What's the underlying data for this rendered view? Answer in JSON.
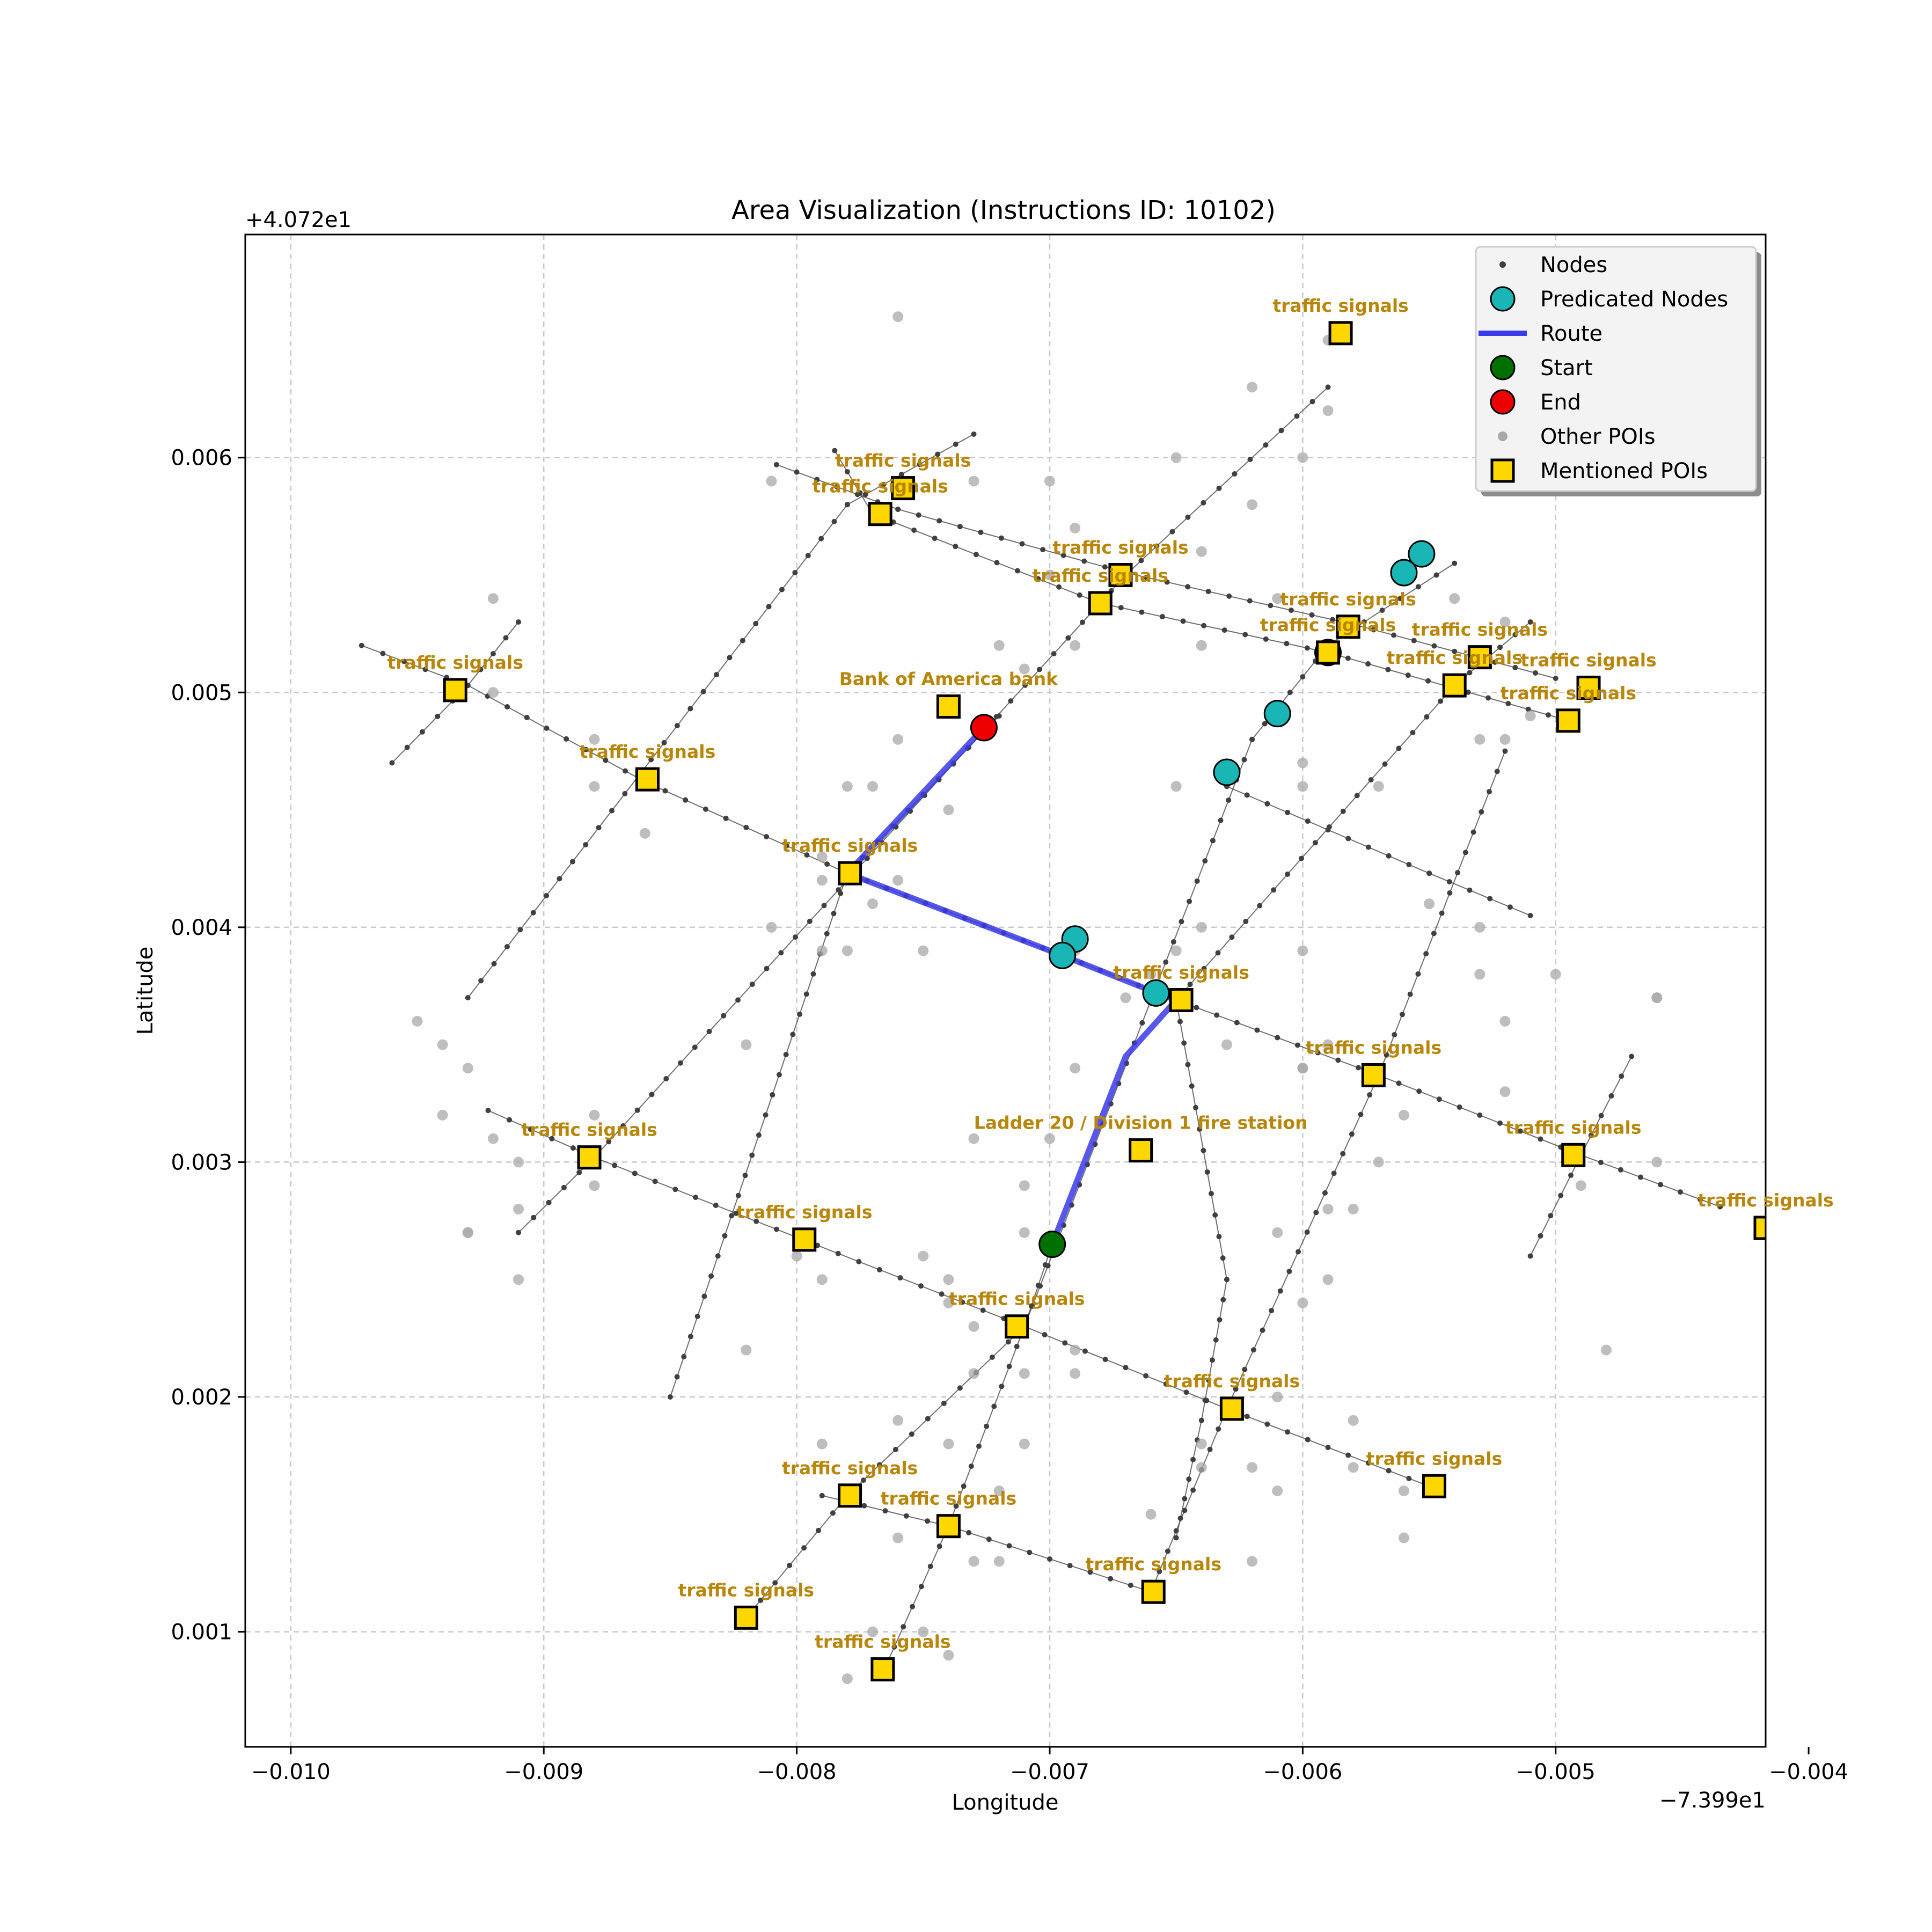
{
  "chart_data": {
    "type": "scatter",
    "title": "Area Visualization (Instructions ID: 10102)",
    "xlabel": "Longitude",
    "ylabel": "Latitude",
    "x_offset_label": "−7.399e1",
    "y_offset_label": "+4.072e1",
    "xlim": [
      -0.01018,
      -0.00417
    ],
    "ylim": [
      0.00051,
      0.00695
    ],
    "x_ticks": [
      -0.01,
      -0.009,
      -0.008,
      -0.007,
      -0.006,
      -0.005,
      -0.004
    ],
    "x_tick_labels": [
      "−0.010",
      "−0.009",
      "−0.008",
      "−0.007",
      "−0.006",
      "−0.005",
      "−0.004"
    ],
    "y_ticks": [
      0.001,
      0.002,
      0.003,
      0.004,
      0.005,
      0.006
    ],
    "y_tick_labels": [
      "0.001",
      "0.002",
      "0.003",
      "0.004",
      "0.005",
      "0.006"
    ],
    "grid": true,
    "legend_position": "top-right",
    "legend": [
      {
        "label": "Nodes",
        "marker": "dot"
      },
      {
        "label": "Predicated Nodes",
        "marker": "cyan-circle"
      },
      {
        "label": "Route",
        "marker": "line"
      },
      {
        "label": "Start",
        "marker": "green-circle"
      },
      {
        "label": "End",
        "marker": "red-circle"
      },
      {
        "label": "Other POIs",
        "marker": "gray-dot"
      },
      {
        "label": "Mentioned POIs",
        "marker": "yellow-square"
      }
    ],
    "colors": {
      "node": "#404040",
      "predicated": "#1ab5b5",
      "route": "#3a3ae8",
      "start": "#007000",
      "end": "#ee0000",
      "other_poi": "#a8a8a8",
      "mentioned_poi": "#ffd700",
      "poi_label": "#b8860b"
    },
    "streets": [
      [
        [
          -0.00972,
          0.0052
        ],
        [
          -0.0093,
          0.00503
        ],
        [
          -0.0086,
          0.00462
        ],
        [
          -0.0078,
          0.00423
        ],
        [
          -0.00695,
          0.00388
        ],
        [
          -0.0065,
          0.00369
        ],
        [
          -0.0057,
          0.00337
        ],
        [
          -0.0049,
          0.00303
        ],
        [
          -0.00435,
          0.00281
        ]
      ],
      [
        [
          -0.00922,
          0.00322
        ],
        [
          -0.0088,
          0.00302
        ],
        [
          -0.008,
          0.00268
        ],
        [
          -0.0071,
          0.0023
        ],
        [
          -0.0063,
          0.00195
        ],
        [
          -0.0055,
          0.00162
        ]
      ],
      [
        [
          -0.00808,
          0.00597
        ],
        [
          -0.0076,
          0.00578
        ],
        [
          -0.0067,
          0.00551
        ],
        [
          -0.0058,
          0.00529
        ],
        [
          -0.005,
          0.00506
        ]
      ],
      [
        [
          -0.00785,
          0.00603
        ],
        [
          -0.0077,
          0.00576
        ],
        [
          -0.0068,
          0.00538
        ],
        [
          -0.0059,
          0.00517
        ],
        [
          -0.00495,
          0.00488
        ]
      ],
      [
        [
          -0.0079,
          0.00158
        ],
        [
          -0.0074,
          0.00145
        ],
        [
          -0.0066,
          0.00117
        ]
      ],
      [
        [
          -0.0063,
          0.0046
        ],
        [
          -0.0055,
          0.00423
        ],
        [
          -0.0051,
          0.00405
        ]
      ],
      [
        [
          -0.0096,
          0.0047
        ],
        [
          -0.0093,
          0.00503
        ],
        [
          -0.0091,
          0.0053
        ]
      ],
      [
        [
          -0.0093,
          0.0037
        ],
        [
          -0.0078,
          0.0058
        ],
        [
          -0.0073,
          0.0061
        ]
      ],
      [
        [
          -0.0091,
          0.0027
        ],
        [
          -0.0088,
          0.00302
        ],
        [
          -0.0067,
          0.0055
        ],
        [
          -0.0059,
          0.0063
        ]
      ],
      [
        [
          -0.0085,
          0.002
        ],
        [
          -0.0078,
          0.00423
        ],
        [
          -0.0072,
          0.0049
        ]
      ],
      [
        [
          -0.0082,
          0.00106
        ],
        [
          -0.0078,
          0.00158
        ],
        [
          -0.0071,
          0.0023
        ],
        [
          -0.0062,
          0.0048
        ],
        [
          -0.0059,
          0.0052
        ],
        [
          -0.0054,
          0.00555
        ]
      ],
      [
        [
          -0.00765,
          0.00085
        ],
        [
          -0.0074,
          0.00145
        ],
        [
          -0.0071,
          0.0023
        ],
        [
          -0.00699,
          0.00265
        ]
      ],
      [
        [
          -0.0066,
          0.00117
        ],
        [
          -0.0063,
          0.00195
        ],
        [
          -0.0057,
          0.00337
        ],
        [
          -0.0052,
          0.00475
        ]
      ],
      [
        [
          -0.0065,
          0.0014
        ],
        [
          -0.0064,
          0.0019
        ],
        [
          -0.0063,
          0.0025
        ],
        [
          -0.0065,
          0.00369
        ],
        [
          -0.0054,
          0.00503
        ],
        [
          -0.0051,
          0.0053
        ]
      ],
      [
        [
          -0.0051,
          0.0026
        ],
        [
          -0.0049,
          0.00303
        ],
        [
          -0.0047,
          0.00345
        ]
      ]
    ],
    "route": [
      [
        -0.00699,
        0.00265
      ],
      [
        -0.0067,
        0.00345
      ],
      [
        -0.0065,
        0.00369
      ],
      [
        -0.0066,
        0.00373
      ],
      [
        -0.00695,
        0.00388
      ],
      [
        -0.0078,
        0.00423
      ],
      [
        -0.00726,
        0.00485
      ]
    ],
    "start": [
      -0.00699,
      0.00265
    ],
    "end": [
      -0.00726,
      0.00485
    ],
    "predicated_nodes": [
      [
        -0.00553,
        0.00559
      ],
      [
        -0.0056,
        0.00551
      ],
      [
        -0.0059,
        0.00517
      ],
      [
        -0.0061,
        0.00491
      ],
      [
        -0.0063,
        0.00466
      ],
      [
        -0.0069,
        0.00395
      ],
      [
        -0.00695,
        0.00388
      ],
      [
        -0.00658,
        0.00372
      ]
    ],
    "other_pois": [
      [
        -0.0076,
        0.0066
      ],
      [
        -0.0059,
        0.0065
      ],
      [
        -0.0059,
        0.0062
      ],
      [
        -0.006,
        0.006
      ],
      [
        -0.0062,
        0.0063
      ],
      [
        -0.0081,
        0.0059
      ],
      [
        -0.0073,
        0.0059
      ],
      [
        -0.007,
        0.0059
      ],
      [
        -0.0065,
        0.006
      ],
      [
        -0.0062,
        0.0058
      ],
      [
        -0.0069,
        0.0057
      ],
      [
        -0.0064,
        0.0056
      ],
      [
        -0.007,
        0.0055
      ],
      [
        -0.0061,
        0.0054
      ],
      [
        -0.0069,
        0.0052
      ],
      [
        -0.0064,
        0.0052
      ],
      [
        -0.0054,
        0.0054
      ],
      [
        -0.0052,
        0.0053
      ],
      [
        -0.0092,
        0.0054
      ],
      [
        -0.0092,
        0.005
      ],
      [
        -0.0071,
        0.0051
      ],
      [
        -0.0072,
        0.0052
      ],
      [
        -0.0053,
        0.0048
      ],
      [
        -0.0052,
        0.0048
      ],
      [
        -0.0051,
        0.0049
      ],
      [
        -0.0088,
        0.0048
      ],
      [
        -0.0088,
        0.0046
      ],
      [
        -0.0086,
        0.0044
      ],
      [
        -0.0076,
        0.0048
      ],
      [
        -0.0077,
        0.0046
      ],
      [
        -0.0074,
        0.0045
      ],
      [
        -0.0079,
        0.0043
      ],
      [
        -0.0079,
        0.0042
      ],
      [
        -0.0078,
        0.0046
      ],
      [
        -0.0065,
        0.0046
      ],
      [
        -0.006,
        0.0047
      ],
      [
        -0.006,
        0.0046
      ],
      [
        -0.0057,
        0.0046
      ],
      [
        -0.0055,
        0.0041
      ],
      [
        -0.0064,
        0.004
      ],
      [
        -0.0065,
        0.0039
      ],
      [
        -0.0069,
        0.0039
      ],
      [
        -0.0081,
        0.004
      ],
      [
        -0.0079,
        0.0039
      ],
      [
        -0.0078,
        0.0039
      ],
      [
        -0.0075,
        0.0039
      ],
      [
        -0.0076,
        0.0042
      ],
      [
        -0.0077,
        0.0041
      ],
      [
        -0.0066,
        0.0038
      ],
      [
        -0.006,
        0.0039
      ],
      [
        -0.0053,
        0.004
      ],
      [
        -0.005,
        0.0038
      ],
      [
        -0.0053,
        0.0038
      ],
      [
        -0.0067,
        0.0037
      ],
      [
        -0.0063,
        0.0035
      ],
      [
        -0.0059,
        0.0035
      ],
      [
        -0.0052,
        0.0036
      ],
      [
        -0.0046,
        0.0037
      ],
      [
        -0.0046,
        0.0037
      ],
      [
        -0.0095,
        0.0036
      ],
      [
        -0.0094,
        0.0035
      ],
      [
        -0.0093,
        0.0034
      ],
      [
        -0.0094,
        0.0032
      ],
      [
        -0.0092,
        0.0031
      ],
      [
        -0.0091,
        0.003
      ],
      [
        -0.0088,
        0.0032
      ],
      [
        -0.0082,
        0.0035
      ],
      [
        -0.0069,
        0.0034
      ],
      [
        -0.006,
        0.0034
      ],
      [
        -0.006,
        0.0034
      ],
      [
        -0.0056,
        0.0032
      ],
      [
        -0.0052,
        0.0033
      ],
      [
        -0.0073,
        0.0031
      ],
      [
        -0.007,
        0.0031
      ],
      [
        -0.0093,
        0.0027
      ],
      [
        -0.0093,
        0.0027
      ],
      [
        -0.0091,
        0.0028
      ],
      [
        -0.0088,
        0.0029
      ],
      [
        -0.0091,
        0.0025
      ],
      [
        -0.0057,
        0.003
      ],
      [
        -0.0049,
        0.0029
      ],
      [
        -0.0046,
        0.003
      ],
      [
        -0.0071,
        0.0029
      ],
      [
        -0.0071,
        0.0027
      ],
      [
        -0.0061,
        0.0027
      ],
      [
        -0.0059,
        0.0028
      ],
      [
        -0.0058,
        0.0028
      ],
      [
        -0.008,
        0.0026
      ],
      [
        -0.0079,
        0.0025
      ],
      [
        -0.0075,
        0.0026
      ],
      [
        -0.0059,
        0.0025
      ],
      [
        -0.0074,
        0.0025
      ],
      [
        -0.0074,
        0.0024
      ],
      [
        -0.0073,
        0.0023
      ],
      [
        -0.006,
        0.0024
      ],
      [
        -0.0082,
        0.0022
      ],
      [
        -0.0069,
        0.0022
      ],
      [
        -0.0071,
        0.0021
      ],
      [
        -0.0069,
        0.0021
      ],
      [
        -0.0048,
        0.0022
      ],
      [
        -0.0073,
        0.0021
      ],
      [
        -0.0061,
        0.002
      ],
      [
        -0.0076,
        0.0019
      ],
      [
        -0.0074,
        0.0018
      ],
      [
        -0.0079,
        0.0018
      ],
      [
        -0.0071,
        0.0018
      ],
      [
        -0.0064,
        0.0018
      ],
      [
        -0.0062,
        0.0017
      ],
      [
        -0.0058,
        0.0017
      ],
      [
        -0.0058,
        0.0019
      ],
      [
        -0.0061,
        0.0016
      ],
      [
        -0.0064,
        0.0017
      ],
      [
        -0.0056,
        0.0016
      ],
      [
        -0.0056,
        0.0014
      ],
      [
        -0.0072,
        0.0016
      ],
      [
        -0.0076,
        0.0014
      ],
      [
        -0.0066,
        0.0015
      ],
      [
        -0.0062,
        0.0013
      ],
      [
        -0.0073,
        0.0013
      ],
      [
        -0.0072,
        0.0013
      ],
      [
        -0.0066,
        0.0012
      ],
      [
        -0.0077,
        0.001
      ],
      [
        -0.0075,
        0.001
      ],
      [
        -0.0074,
        0.0009
      ],
      [
        -0.0078,
        0.0008
      ]
    ],
    "mentioned_pois": [
      {
        "label": "traffic signals",
        "x": -0.00585,
        "y": 0.00653
      },
      {
        "label": "traffic signals",
        "x": -0.00758,
        "y": 0.00587
      },
      {
        "label": "traffic signals",
        "x": -0.00767,
        "y": 0.00576
      },
      {
        "label": "traffic signals",
        "x": -0.00672,
        "y": 0.0055
      },
      {
        "label": "traffic signals",
        "x": -0.0068,
        "y": 0.00538
      },
      {
        "label": "traffic signals",
        "x": -0.00582,
        "y": 0.00528
      },
      {
        "label": "traffic signals",
        "x": -0.0059,
        "y": 0.00517
      },
      {
        "label": "traffic signals",
        "x": -0.0053,
        "y": 0.00515
      },
      {
        "label": "traffic signals",
        "x": -0.0054,
        "y": 0.00503
      },
      {
        "label": "traffic signals",
        "x": -0.00487,
        "y": 0.00502
      },
      {
        "label": "traffic signals",
        "x": -0.00495,
        "y": 0.00488
      },
      {
        "label": "traffic signals",
        "x": -0.00935,
        "y": 0.00501
      },
      {
        "label": "Bank of America bank",
        "x": -0.0074,
        "y": 0.00494
      },
      {
        "label": "traffic signals",
        "x": -0.00859,
        "y": 0.00463
      },
      {
        "label": "traffic signals",
        "x": -0.00779,
        "y": 0.00423
      },
      {
        "label": "traffic signals",
        "x": -0.00648,
        "y": 0.00369
      },
      {
        "label": "traffic signals",
        "x": -0.00572,
        "y": 0.00337
      },
      {
        "label": "traffic signals",
        "x": -0.00493,
        "y": 0.00303
      },
      {
        "label": "traffic signals",
        "x": -0.00417,
        "y": 0.00272
      },
      {
        "label": "Ladder 20 / Division 1 fire station",
        "x": -0.00664,
        "y": 0.00305
      },
      {
        "label": "traffic signals",
        "x": -0.00882,
        "y": 0.00302
      },
      {
        "label": "traffic signals",
        "x": -0.00797,
        "y": 0.00267
      },
      {
        "label": "traffic signals",
        "x": -0.00713,
        "y": 0.0023
      },
      {
        "label": "traffic signals",
        "x": -0.00628,
        "y": 0.00195
      },
      {
        "label": "traffic signals",
        "x": -0.00548,
        "y": 0.00162
      },
      {
        "label": "traffic signals",
        "x": -0.00779,
        "y": 0.00158
      },
      {
        "label": "traffic signals",
        "x": -0.0074,
        "y": 0.00145
      },
      {
        "label": "traffic signals",
        "x": -0.00659,
        "y": 0.00117
      },
      {
        "label": "traffic signals",
        "x": -0.0082,
        "y": 0.00106
      },
      {
        "label": "traffic signals",
        "x": -0.00766,
        "y": 0.00084
      }
    ]
  }
}
